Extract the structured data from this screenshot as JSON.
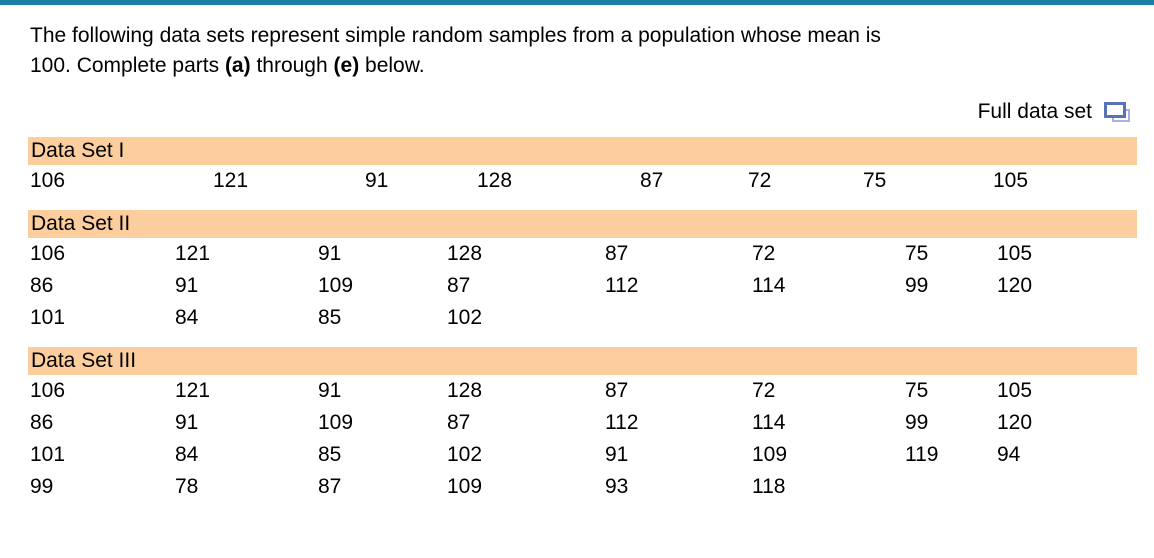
{
  "colors": {
    "accent_teal": "#1b7fa4",
    "header_bg": "#fcce9e",
    "icon_blue": "#5a73b8",
    "icon_light_blue": "#a9b2d8"
  },
  "intro": {
    "line1": "The following data sets represent simple random samples from a population whose mean is",
    "line2_parts": [
      "100. Complete parts ",
      "(a)",
      " through ",
      "(e)",
      " below."
    ]
  },
  "full_data_set": {
    "label": "Full data set",
    "icon": "popout-windows-icon"
  },
  "sections": [
    {
      "title": "Data Set I",
      "rows": [
        [
          "106",
          "121",
          "91",
          "128",
          "87",
          "72",
          "75",
          "105"
        ]
      ]
    },
    {
      "title": "Data Set II",
      "rows": [
        [
          "106",
          "121",
          "91",
          "128",
          "87",
          "72",
          "75",
          "105"
        ],
        [
          "86",
          "91",
          "109",
          "87",
          "112",
          "114",
          "99",
          "120"
        ],
        [
          "101",
          "84",
          "85",
          "102",
          "",
          "",
          "",
          ""
        ]
      ]
    },
    {
      "title": "Data Set III",
      "rows": [
        [
          "106",
          "121",
          "91",
          "128",
          "87",
          "72",
          "75",
          "105"
        ],
        [
          "86",
          "91",
          "109",
          "87",
          "112",
          "114",
          "99",
          "120"
        ],
        [
          "101",
          "84",
          "85",
          "102",
          "91",
          "109",
          "119",
          "94"
        ],
        [
          "99",
          "78",
          "87",
          "109",
          "93",
          "118",
          "",
          ""
        ]
      ]
    }
  ]
}
